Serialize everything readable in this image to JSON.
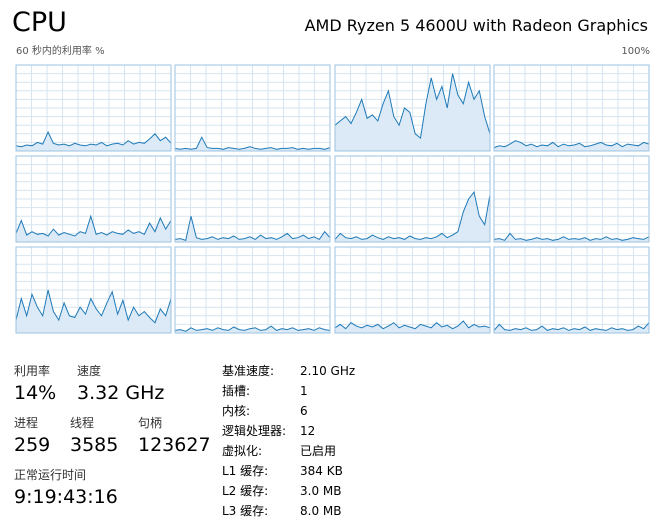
{
  "header": {
    "title": "CPU",
    "processor": "AMD Ryzen 5 4600U with Radeon Graphics"
  },
  "cpu_graphs": {
    "caption": "60 秒内的利用率 %",
    "ylim": [
      0,
      100
    ],
    "yticks": [
      {
        "value": 100,
        "label": "100%"
      }
    ],
    "line_color": "#1f7ab8",
    "fill_color": "#dbeaf6",
    "grid_color": "#d6e5f1",
    "border_color": "#9cc3e2",
    "series": [
      {
        "values": [
          6,
          5,
          7,
          6,
          10,
          8,
          22,
          9,
          7,
          8,
          6,
          9,
          7,
          6,
          8,
          7,
          10,
          6,
          8,
          9,
          7,
          12,
          8,
          10,
          9,
          14,
          20,
          12,
          16,
          9
        ]
      },
      {
        "values": [
          3,
          2,
          3,
          2,
          3,
          16,
          4,
          3,
          3,
          2,
          4,
          3,
          2,
          3,
          5,
          3,
          2,
          3,
          4,
          2,
          3,
          3,
          4,
          2,
          3,
          2,
          3,
          3,
          2,
          4
        ]
      },
      {
        "values": [
          30,
          35,
          40,
          32,
          45,
          60,
          38,
          42,
          35,
          55,
          70,
          40,
          30,
          50,
          45,
          20,
          15,
          55,
          85,
          60,
          75,
          50,
          90,
          65,
          55,
          80,
          60,
          70,
          40,
          20
        ]
      },
      {
        "values": [
          4,
          6,
          5,
          8,
          12,
          10,
          6,
          8,
          5,
          7,
          6,
          10,
          5,
          8,
          6,
          7,
          9,
          5,
          6,
          8,
          10,
          7,
          6,
          9,
          5,
          8,
          7,
          6,
          10,
          8
        ]
      },
      {
        "values": [
          10,
          25,
          8,
          12,
          9,
          10,
          7,
          15,
          8,
          11,
          9,
          7,
          12,
          10,
          30,
          9,
          11,
          8,
          12,
          10,
          9,
          14,
          10,
          12,
          9,
          22,
          12,
          28,
          15,
          25
        ]
      },
      {
        "values": [
          3,
          4,
          2,
          30,
          5,
          3,
          4,
          6,
          3,
          5,
          4,
          7,
          3,
          4,
          6,
          3,
          8,
          4,
          5,
          3,
          6,
          10,
          4,
          5,
          8,
          4,
          6,
          3,
          12,
          5
        ]
      },
      {
        "values": [
          3,
          10,
          5,
          4,
          6,
          3,
          4,
          8,
          5,
          3,
          6,
          4,
          5,
          3,
          7,
          4,
          3,
          5,
          4,
          6,
          10,
          5,
          8,
          12,
          35,
          50,
          58,
          30,
          20,
          55
        ]
      },
      {
        "values": [
          3,
          4,
          2,
          10,
          3,
          4,
          2,
          3,
          5,
          3,
          4,
          2,
          3,
          6,
          3,
          4,
          3,
          5,
          2,
          4,
          3,
          6,
          3,
          4,
          2,
          3,
          5,
          4,
          3,
          6
        ]
      },
      {
        "values": [
          15,
          40,
          20,
          45,
          30,
          20,
          50,
          25,
          15,
          35,
          20,
          18,
          30,
          22,
          40,
          28,
          20,
          35,
          48,
          22,
          38,
          15,
          30,
          20,
          25,
          18,
          12,
          28,
          20,
          40
        ]
      },
      {
        "values": [
          3,
          4,
          2,
          6,
          3,
          4,
          5,
          3,
          6,
          4,
          3,
          7,
          4,
          3,
          5,
          6,
          3,
          4,
          8,
          3,
          5,
          4,
          6,
          3,
          4,
          5,
          3,
          6,
          4,
          3
        ]
      },
      {
        "values": [
          6,
          10,
          5,
          12,
          8,
          6,
          9,
          7,
          10,
          5,
          8,
          12,
          6,
          9,
          7,
          5,
          10,
          8,
          6,
          12,
          7,
          9,
          5,
          8,
          14,
          6,
          10,
          7,
          8,
          6
        ]
      },
      {
        "values": [
          3,
          10,
          4,
          3,
          5,
          4,
          6,
          3,
          4,
          8,
          3,
          5,
          4,
          6,
          3,
          5,
          4,
          7,
          3,
          5,
          4,
          3,
          6,
          4,
          5,
          3,
          4,
          8,
          5,
          12
        ]
      }
    ]
  },
  "stats": {
    "utilization": {
      "label": "利用率",
      "value": "14%"
    },
    "speed": {
      "label": "速度",
      "value": "3.32 GHz"
    },
    "processes": {
      "label": "进程",
      "value": "259"
    },
    "threads": {
      "label": "线程",
      "value": "3585"
    },
    "handles": {
      "label": "句柄",
      "value": "123627"
    },
    "uptime": {
      "label": "正常运行时间",
      "value": "9:19:43:16"
    }
  },
  "details": [
    {
      "label": "基准速度:",
      "value": "2.10 GHz"
    },
    {
      "label": "插槽:",
      "value": "1"
    },
    {
      "label": "内核:",
      "value": "6"
    },
    {
      "label": "逻辑处理器:",
      "value": "12"
    },
    {
      "label": "虚拟化:",
      "value": "已启用"
    },
    {
      "label": "L1 缓存:",
      "value": "384 KB"
    },
    {
      "label": "L2 缓存:",
      "value": "3.0 MB"
    },
    {
      "label": "L3 缓存:",
      "value": "8.0 MB"
    }
  ]
}
